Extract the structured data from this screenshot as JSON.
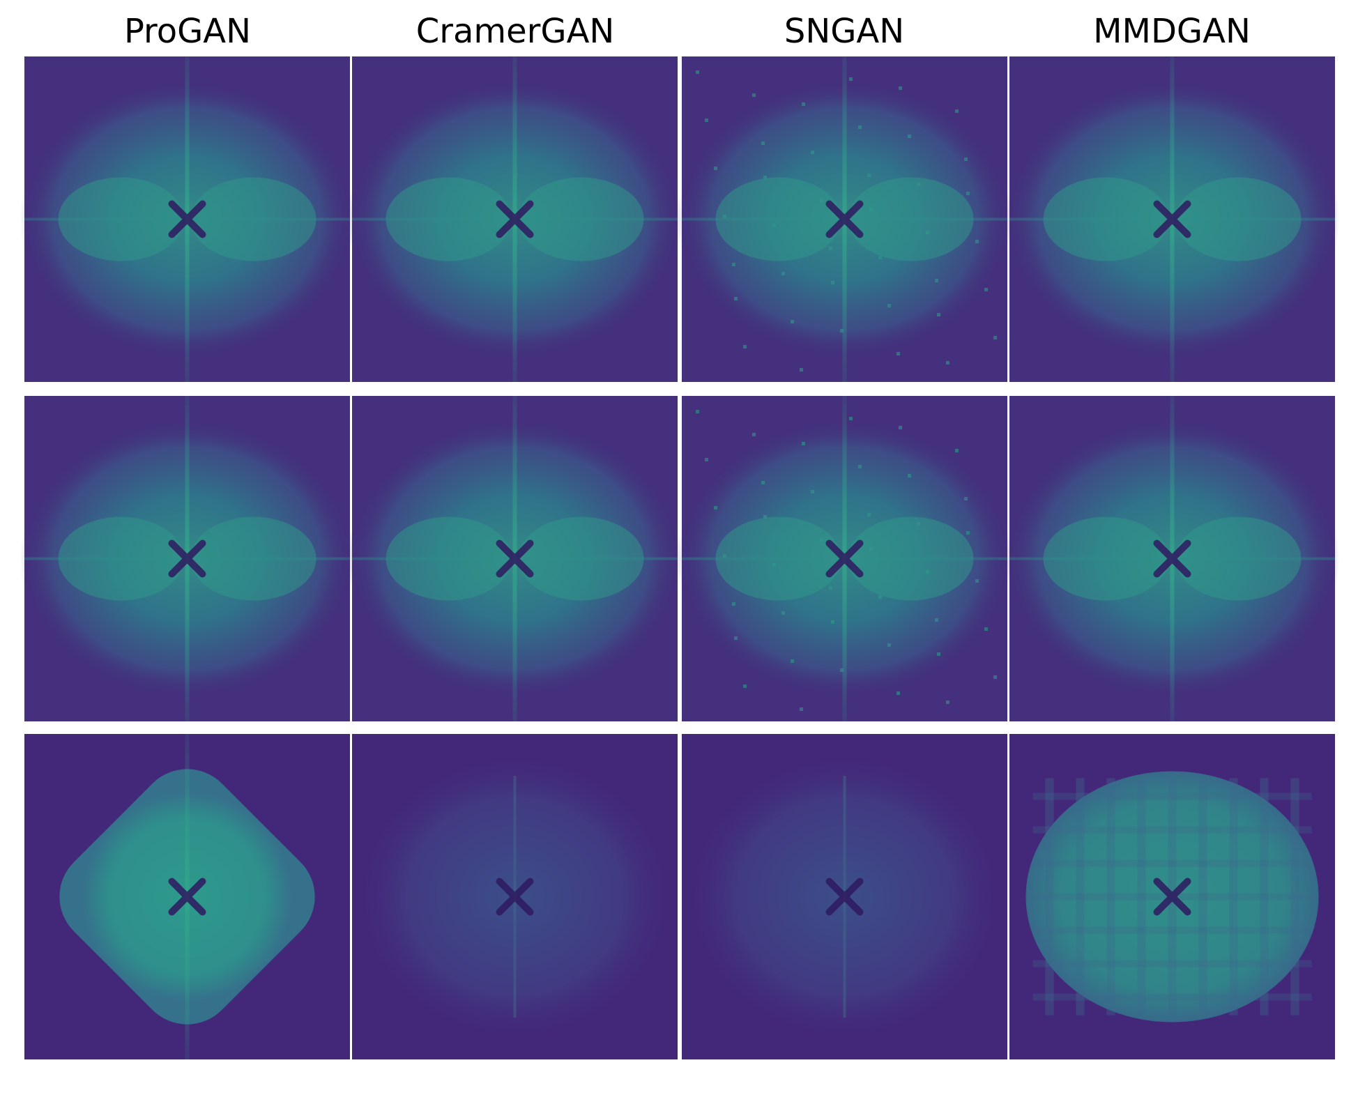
{
  "columns": [
    "ProGAN",
    "CramerGAN",
    "SNGAN",
    "MMDGAN"
  ]
}
